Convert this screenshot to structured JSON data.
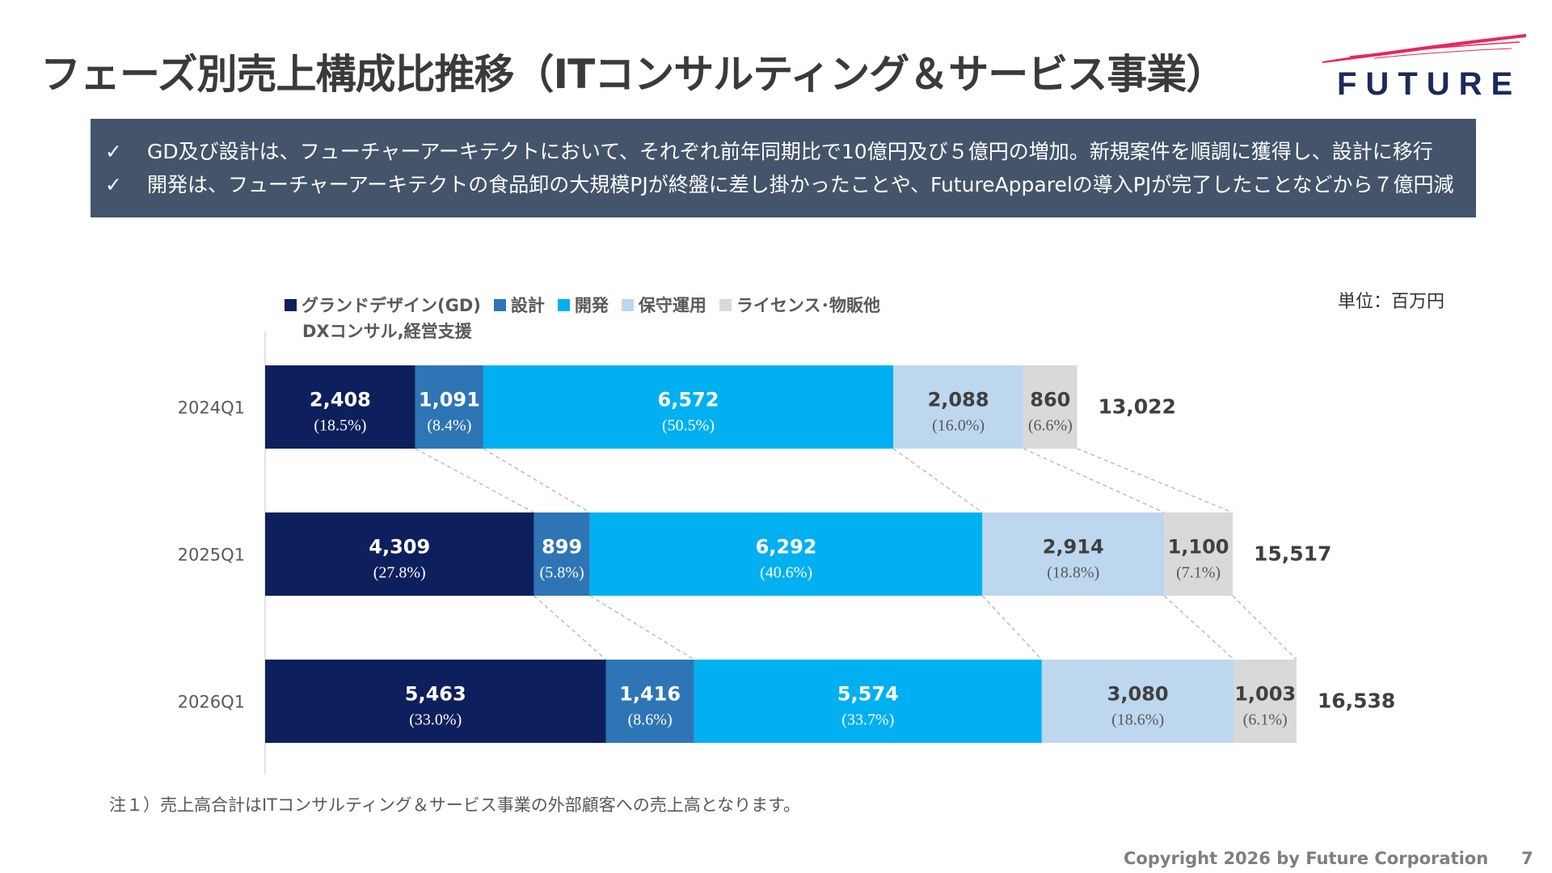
{
  "title": "フェーズ別売上構成比推移（ITコンサルティング＆サービス事業）",
  "logo": {
    "text": "FUTURE",
    "accent_color": "#e8265e"
  },
  "summary": {
    "check_icon": "✓",
    "lines": [
      "GD及び設計は、フューチャーアーキテクトにおいて、それぞれ前年同期比で10億円及び５億円の増加。新規案件を順調に獲得し、設計に移行",
      "開発は、フューチャーアーキテクトの食品卸の大規模PJが終盤に差し掛かったことや、FutureApparelの導入PJが完了したことなどから７億円減"
    ]
  },
  "unit_label": "単位：百万円",
  "legend_note": "DXコンサル,経営支援",
  "chart_data": {
    "type": "bar",
    "orientation": "horizontal",
    "stacked": true,
    "categories": [
      "2024Q1",
      "2025Q1",
      "2026Q1"
    ],
    "series": [
      {
        "name": "グランドデザイン(GD)",
        "color": "#0d1f5c",
        "values": [
          2408,
          4309,
          5463
        ],
        "labels": [
          "2,408",
          "4,309",
          "5,463"
        ],
        "shares": [
          "(18.5%)",
          "(27.8%)",
          "(33.0%)"
        ]
      },
      {
        "name": "設計",
        "color": "#2e75b6",
        "values": [
          1091,
          899,
          1416
        ],
        "labels": [
          "1,091",
          "899",
          "1,416"
        ],
        "shares": [
          "(8.4%)",
          "(5.8%)",
          "(8.6%)"
        ]
      },
      {
        "name": "開発",
        "color": "#00b0f0",
        "values": [
          6572,
          6292,
          5574
        ],
        "labels": [
          "6,572",
          "6,292",
          "5,574"
        ],
        "shares": [
          "(50.5%)",
          "(40.6%)",
          "(33.7%)"
        ]
      },
      {
        "name": "保守運用",
        "color": "#bdd7ee",
        "values": [
          2088,
          2914,
          3080
        ],
        "labels": [
          "2,088",
          "2,914",
          "3,080"
        ],
        "shares": [
          "(16.0%)",
          "(18.8%)",
          "(18.6%)"
        ]
      },
      {
        "name": "ライセンス･物販他",
        "color": "#d9d9d9",
        "values": [
          860,
          1100,
          1003
        ],
        "labels": [
          "860",
          "1,100",
          "1,003"
        ],
        "shares": [
          "(6.6%)",
          "(7.1%)",
          "(6.1%)"
        ]
      }
    ],
    "totals": [
      "13,022",
      "15,517",
      "16,538"
    ],
    "xlim": [
      0,
      16538
    ],
    "legend_position": "top",
    "grid": false
  },
  "note": "注１）売上高合計はITコンサルティング＆サービス事業の外部顧客への売上高となります。",
  "copyright": "Copyright 2026 by Future  Corporation",
  "page_number": "7"
}
